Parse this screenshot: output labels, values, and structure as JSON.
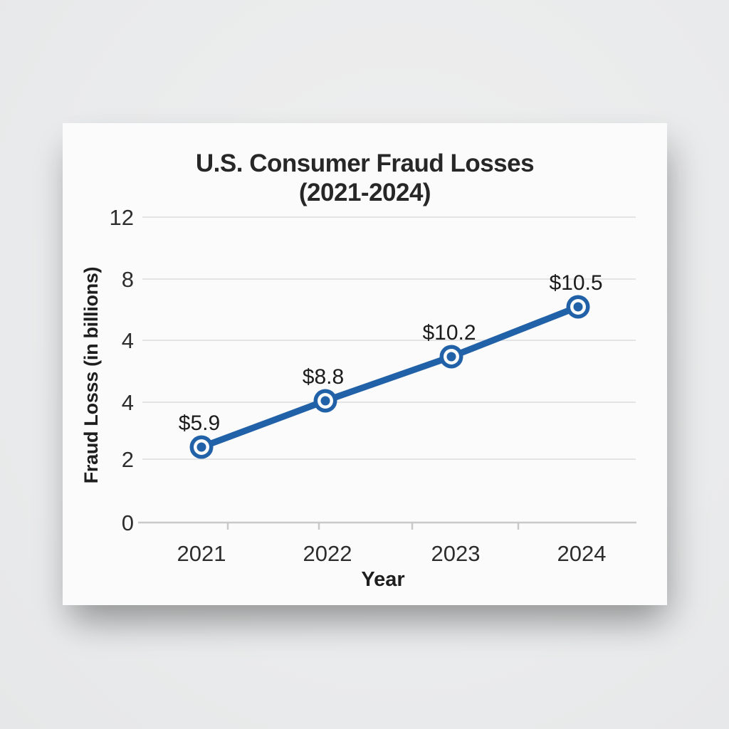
{
  "page": {
    "background_color": "#ebeced",
    "card_color": "#fbfbfb"
  },
  "chart_data": {
    "type": "line",
    "title": "U.S. Consumer Fraud Losses",
    "subtitle": "(2021-2024)",
    "full_title": "U.S. Consumer Fraud Losses (2021-2024)",
    "xlabel": "Year",
    "ylabel": "Fraud Losss (in billions)",
    "categories": [
      "2021",
      "2022",
      "2023",
      "2024"
    ],
    "series": [
      {
        "name": "U.S. consumer fraud losses",
        "values": [
          5.9,
          8.8,
          10.2,
          10.5
        ],
        "point_labels": [
          "$5.9",
          "$8.8",
          "$10.2",
          "$10.5"
        ]
      }
    ],
    "y_axis": {
      "tick_labels": [
        "12",
        "8",
        "4",
        "4",
        "2",
        "0"
      ]
    },
    "grid": true,
    "legend": false,
    "line_color": "#2161a8",
    "marker_style": "ring-dot",
    "grid_color": "#e3e4e6",
    "axis_color": "#c7c9cb",
    "text_color": "#2d2d2d"
  }
}
